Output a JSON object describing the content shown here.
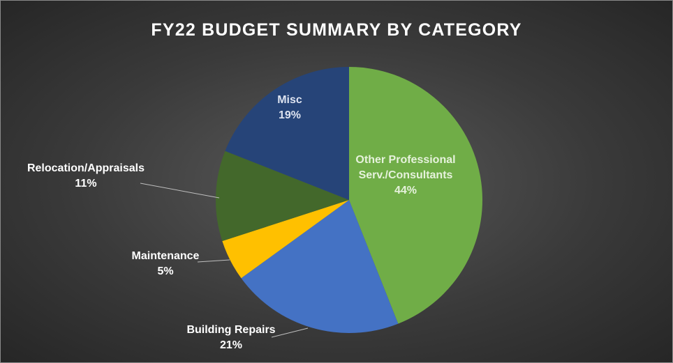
{
  "chart_data": {
    "type": "pie",
    "title": "FY22 BUDGET SUMMARY BY CATEGORY",
    "categories": [
      "Other Professional Serv./Consultants",
      "Building Repairs",
      "Maintenance",
      "Relocation/Appraisals",
      "Misc"
    ],
    "values": [
      44,
      21,
      5,
      11,
      19
    ],
    "value_labels": [
      "44%",
      "21%",
      "5%",
      "11%",
      "19%"
    ],
    "colors": [
      "#70ad47",
      "#4472c4",
      "#ffc000",
      "#43682b",
      "#264478"
    ]
  }
}
